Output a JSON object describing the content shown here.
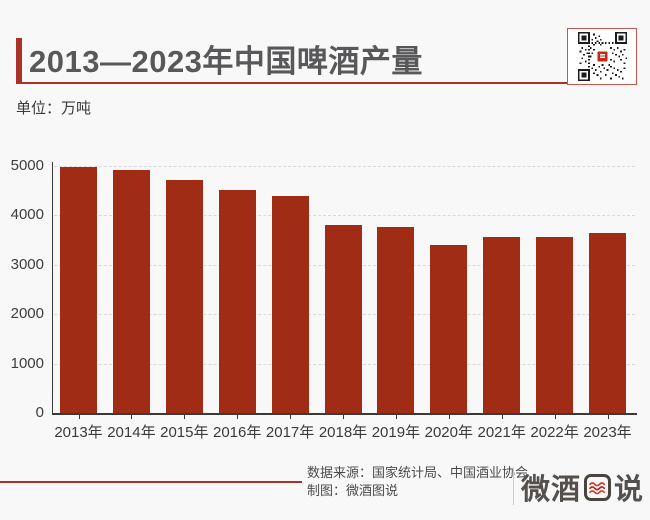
{
  "header": {
    "title": "2013—2023年中国啤酒产量",
    "unit_label": "单位：万吨",
    "accent_color": "#A93128",
    "qr_icon": "qr-code"
  },
  "chart_data": {
    "type": "bar",
    "title": "2013—2023年中国啤酒产量",
    "unit": "万吨",
    "categories": [
      "2013年",
      "2014年",
      "2015年",
      "2016年",
      "2017年",
      "2018年",
      "2019年",
      "2020年",
      "2021年",
      "2022年",
      "2023年"
    ],
    "values": [
      4983,
      4922,
      4716,
      4506,
      4402,
      3812,
      3765,
      3411,
      3562,
      3569,
      3640
    ],
    "xlabel": "",
    "ylabel": "",
    "ylim": [
      0,
      5000
    ],
    "yticks": [
      0,
      1000,
      2000,
      3000,
      4000,
      5000
    ],
    "bar_color": "#A02C15",
    "grid": true,
    "gridline_style": "dashed",
    "legend": false
  },
  "footer": {
    "source_label": "数据来源：国家统计局、中国酒业协会",
    "credit_label": "制图：微酒图说",
    "logo": {
      "left": "微酒",
      "right": "说",
      "wave_icon": "red-waves"
    }
  }
}
